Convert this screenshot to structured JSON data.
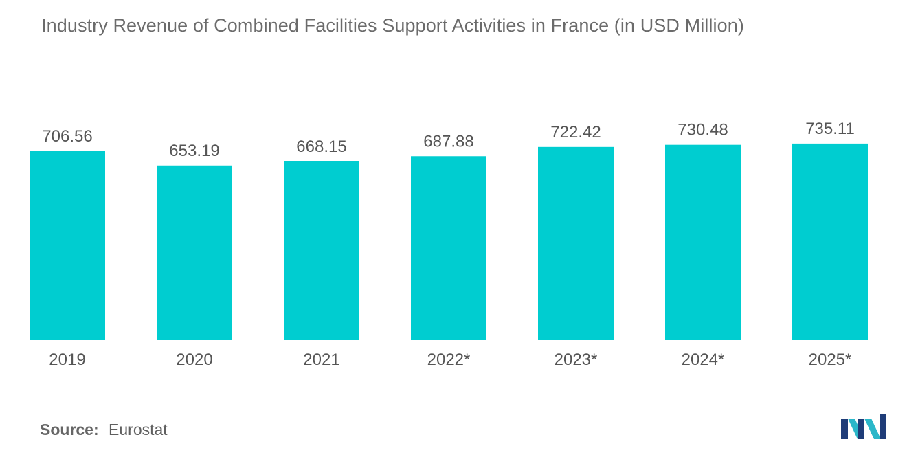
{
  "title": "Industry Revenue of Combined Facilities Support Activities in France (in USD Million)",
  "source": {
    "label": "Source:",
    "value": "Eurostat"
  },
  "colors": {
    "bar": "#00cdd0",
    "text": "#555555",
    "logo_dark": "#1f3c78",
    "logo_light": "#2bb7c9"
  },
  "chart_data": {
    "type": "bar",
    "title": "Industry Revenue of Combined Facilities Support Activities in France (in USD Million)",
    "categories": [
      "2019",
      "2020",
      "2021",
      "2022*",
      "2023*",
      "2024*",
      "2025*"
    ],
    "values": [
      706.56,
      653.19,
      668.15,
      687.88,
      722.42,
      730.48,
      735.11
    ],
    "value_labels": [
      "706.56",
      "653.19",
      "668.15",
      "687.88",
      "722.42",
      "730.48",
      "735.11"
    ],
    "xlabel": "",
    "ylabel": "",
    "ylim": [
      0,
      760
    ],
    "grid": false,
    "legend": "none"
  }
}
